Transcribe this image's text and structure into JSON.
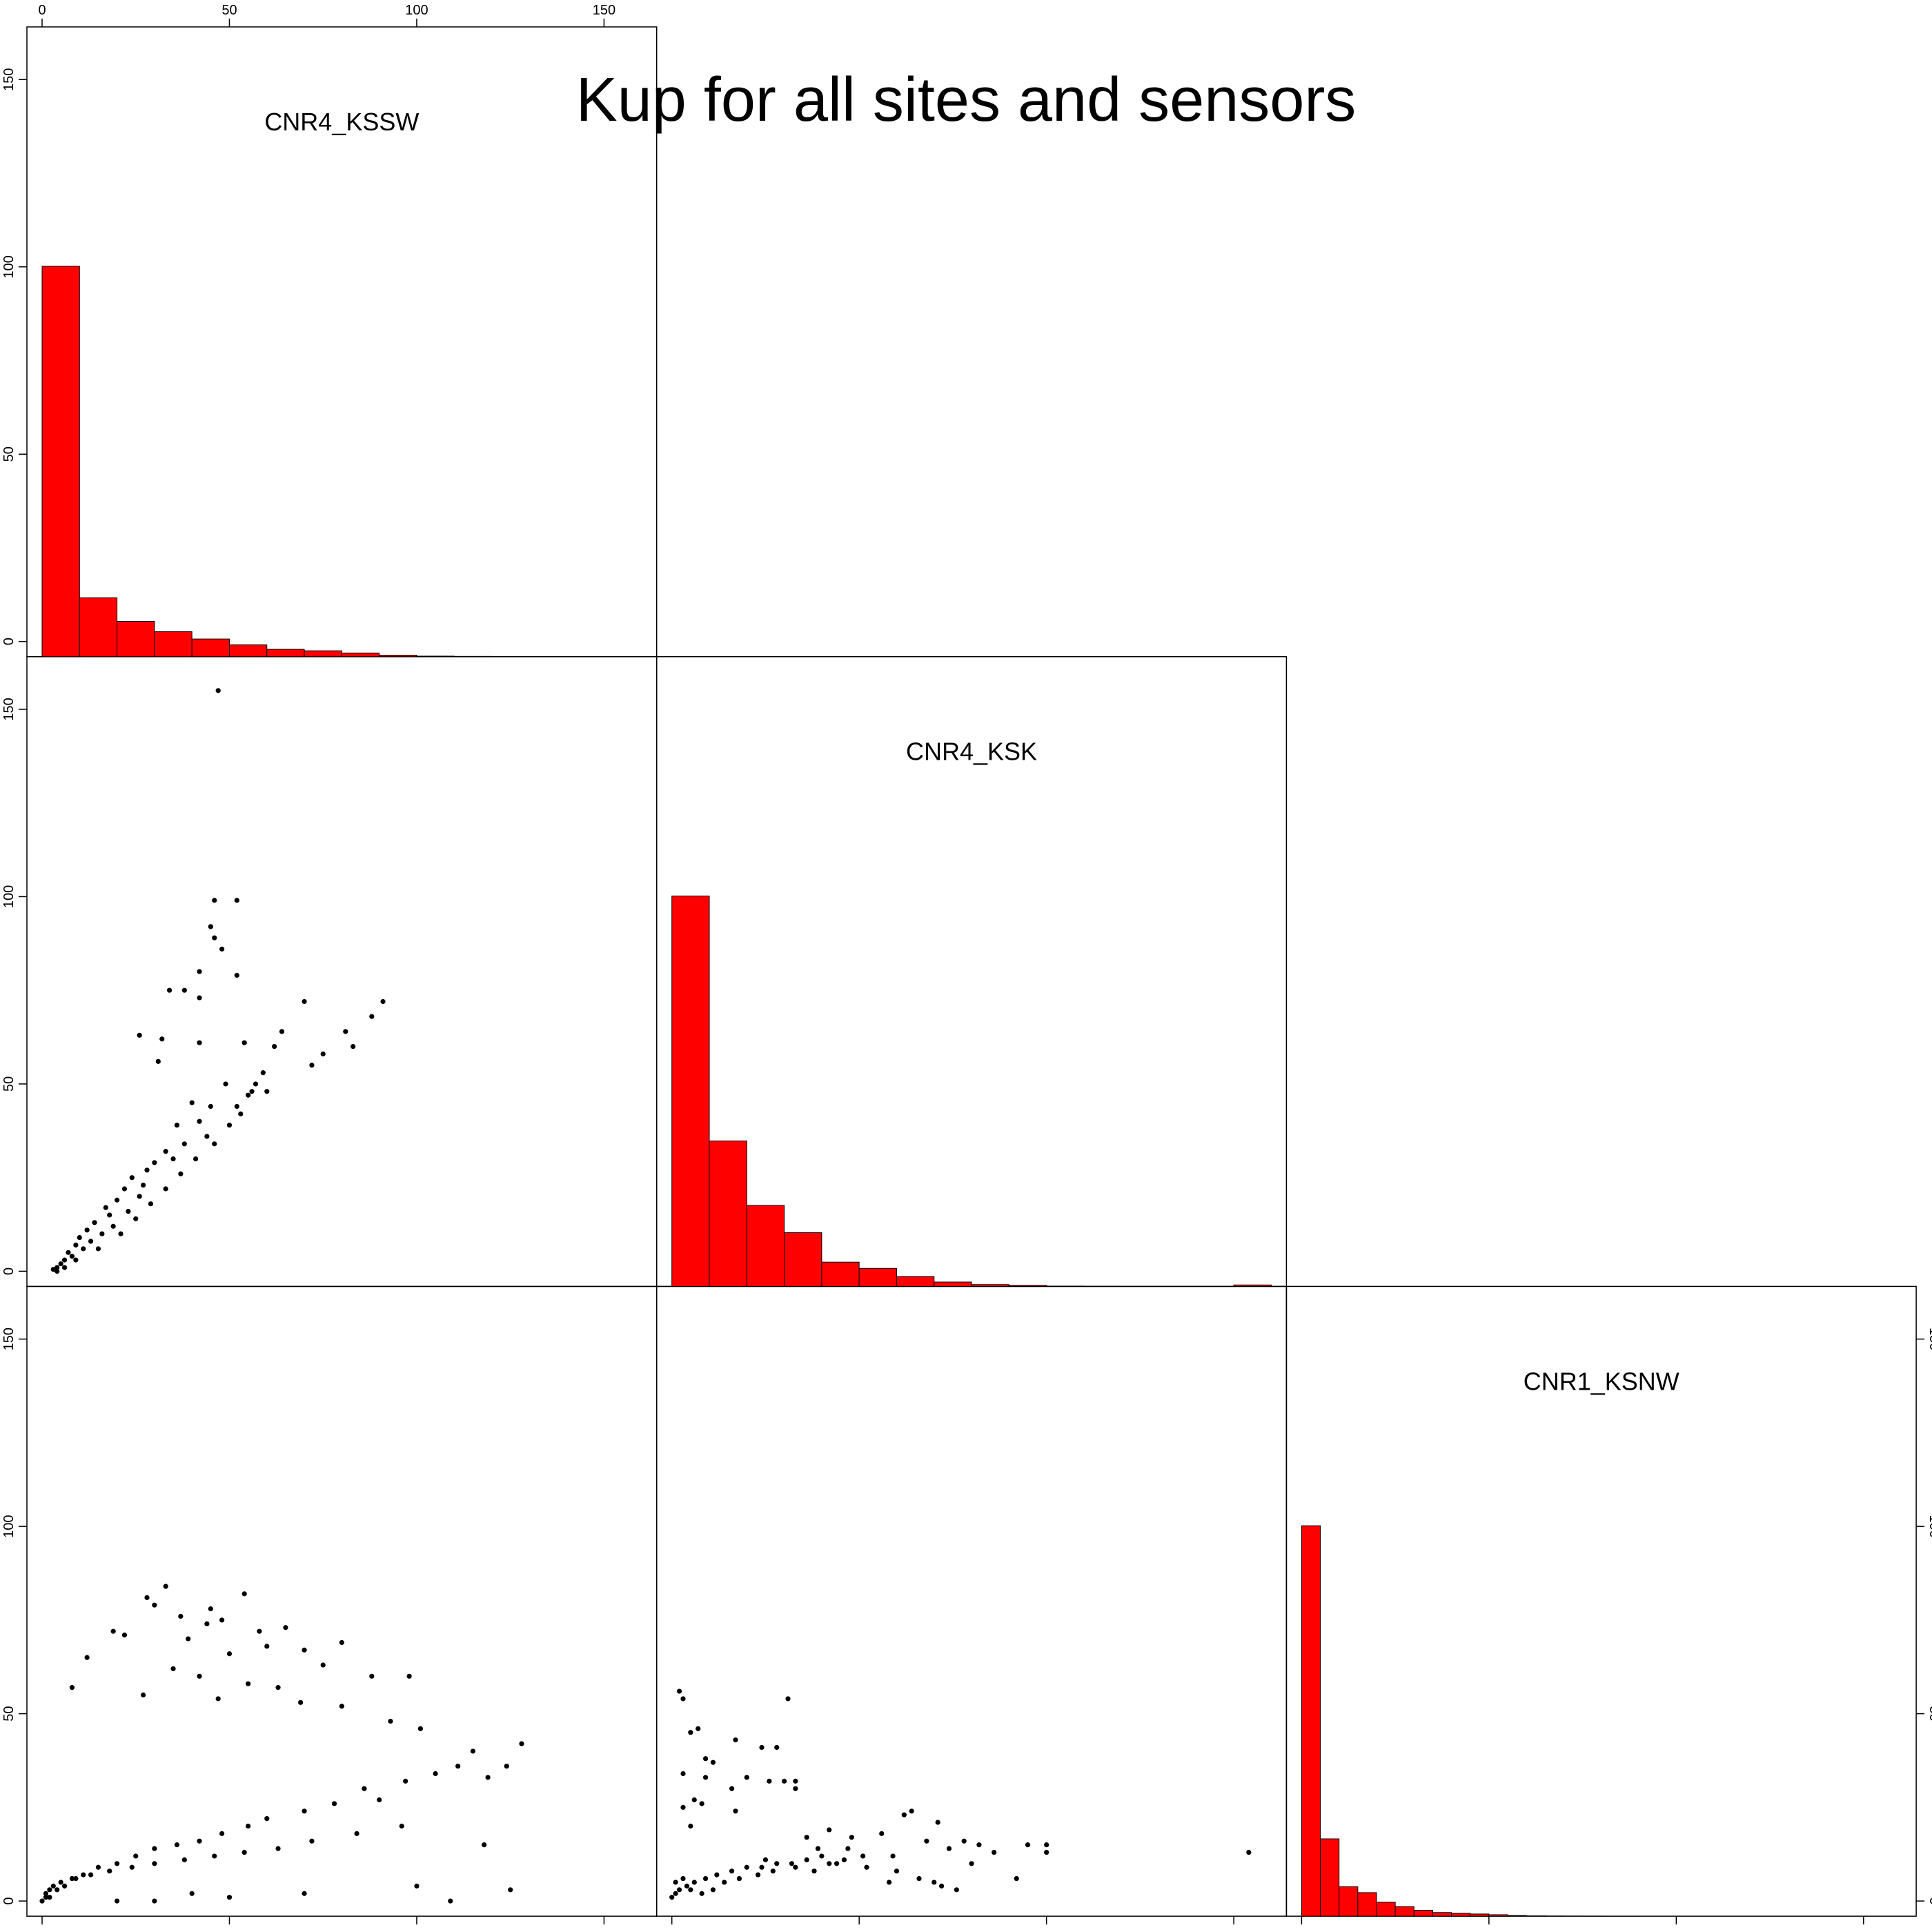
{
  "title": "Kup for all sites and sensors",
  "colors": {
    "bar_fill": "#ff0000",
    "bar_stroke": "#000000",
    "point": "#000000",
    "frame": "#000000"
  },
  "chart_data": {
    "type": "scatter-matrix",
    "variables": [
      "CNR4_KSSW",
      "CNR4_KSK",
      "CNR1_KSNW"
    ],
    "axis_range": [
      0,
      160
    ],
    "ticks": [
      "0",
      "50",
      "100",
      "150"
    ],
    "tick_values": [
      0,
      50,
      100,
      150
    ],
    "diagonal_histograms": [
      {
        "variable": "CNR4_KSSW",
        "bin_width": 10,
        "bin_starts": [
          0,
          10,
          20,
          30,
          40,
          50,
          60,
          70,
          80,
          90,
          100,
          110,
          120,
          130,
          140
        ],
        "relative_heights": [
          106,
          16,
          9.6,
          6.8,
          4.8,
          3.2,
          2.0,
          1.6,
          1.0,
          0.4,
          0.15,
          0.06,
          0.04,
          0.02,
          0.01
        ]
      },
      {
        "variable": "CNR4_KSK",
        "bin_width": 10,
        "bin_starts": [
          0,
          10,
          20,
          30,
          40,
          50,
          60,
          70,
          80,
          90,
          100,
          110,
          120,
          130,
          140,
          150
        ],
        "relative_heights": [
          106,
          39.5,
          22,
          14.6,
          6.6,
          4.9,
          2.7,
          1.2,
          0.5,
          0.3,
          0.1,
          0.05,
          0.04,
          0.03,
          0.02,
          0.4
        ]
      },
      {
        "variable": "CNR1_KSNW",
        "bin_width": 5,
        "bin_starts": [
          0,
          5,
          10,
          15,
          20,
          25,
          30,
          35,
          40,
          45,
          50,
          55,
          60,
          65,
          70,
          75,
          80,
          85
        ],
        "relative_heights": [
          106,
          21,
          8,
          6.4,
          3.8,
          2.6,
          1.6,
          1.0,
          0.8,
          0.6,
          0.4,
          0.2,
          0.1,
          0.06,
          0.04,
          0.03,
          0.02,
          0.01
        ]
      }
    ],
    "scatter_panels": [
      {
        "x": "CNR4_KSSW",
        "y": "CNR4_KSK",
        "points": [
          [
            47,
            155
          ],
          [
            46,
            99
          ],
          [
            52,
            99
          ],
          [
            45,
            92
          ],
          [
            46,
            89
          ],
          [
            48,
            86
          ],
          [
            42,
            80
          ],
          [
            52,
            79
          ],
          [
            34,
            75
          ],
          [
            38,
            75
          ],
          [
            42,
            73
          ],
          [
            70,
            72
          ],
          [
            91,
            72
          ],
          [
            88,
            68
          ],
          [
            64,
            64
          ],
          [
            81,
            64
          ],
          [
            26,
            63
          ],
          [
            32,
            62
          ],
          [
            54,
            61
          ],
          [
            42,
            61
          ],
          [
            83,
            60
          ],
          [
            62,
            60
          ],
          [
            75,
            58
          ],
          [
            72,
            55
          ],
          [
            31,
            56
          ],
          [
            59,
            53
          ],
          [
            57,
            50
          ],
          [
            60,
            48
          ],
          [
            49,
            50
          ],
          [
            55,
            47
          ],
          [
            40,
            45
          ],
          [
            45,
            44
          ],
          [
            53,
            42
          ],
          [
            42,
            40
          ],
          [
            36,
            39
          ],
          [
            44,
            36
          ],
          [
            38,
            34
          ],
          [
            33,
            32
          ],
          [
            35,
            30
          ],
          [
            30,
            29
          ],
          [
            28,
            27
          ],
          [
            24,
            25
          ],
          [
            27,
            23
          ],
          [
            22,
            22
          ],
          [
            26,
            20
          ],
          [
            20,
            19
          ],
          [
            17,
            17
          ],
          [
            23,
            16
          ],
          [
            18,
            15
          ],
          [
            14,
            13
          ],
          [
            19,
            12
          ],
          [
            12,
            11
          ],
          [
            16,
            10
          ],
          [
            10,
            9
          ],
          [
            13,
            8
          ],
          [
            9,
            7
          ],
          [
            11,
            6
          ],
          [
            7,
            5
          ],
          [
            8,
            4
          ],
          [
            6,
            3
          ],
          [
            5,
            2
          ],
          [
            4,
            1
          ],
          [
            3,
            0.5
          ],
          [
            4,
            0
          ],
          [
            6,
            1
          ],
          [
            9,
            3
          ],
          [
            15,
            6
          ],
          [
            21,
            10
          ],
          [
            25,
            14
          ],
          [
            29,
            18
          ],
          [
            33,
            22
          ],
          [
            37,
            26
          ],
          [
            41,
            30
          ],
          [
            46,
            34
          ],
          [
            50,
            39
          ],
          [
            52,
            44
          ],
          [
            56,
            48
          ]
        ]
      },
      {
        "x": "CNR4_KSSW",
        "y": "CNR1_KSNW",
        "points": [
          [
            33,
            84
          ],
          [
            54,
            82
          ],
          [
            28,
            81
          ],
          [
            30,
            79
          ],
          [
            45,
            78
          ],
          [
            37,
            76
          ],
          [
            48,
            75
          ],
          [
            44,
            74
          ],
          [
            65,
            73
          ],
          [
            58,
            72
          ],
          [
            19,
            72
          ],
          [
            80,
            69
          ],
          [
            22,
            71
          ],
          [
            39,
            70
          ],
          [
            60,
            68
          ],
          [
            70,
            67
          ],
          [
            50,
            66
          ],
          [
            12,
            65
          ],
          [
            75,
            63
          ],
          [
            88,
            60
          ],
          [
            98,
            60
          ],
          [
            35,
            62
          ],
          [
            42,
            60
          ],
          [
            55,
            58
          ],
          [
            63,
            57
          ],
          [
            8,
            57
          ],
          [
            27,
            55
          ],
          [
            47,
            54
          ],
          [
            69,
            53
          ],
          [
            80,
            52
          ],
          [
            93,
            48
          ],
          [
            101,
            46
          ],
          [
            128,
            42
          ],
          [
            115,
            40
          ],
          [
            124,
            36
          ],
          [
            111,
            36
          ],
          [
            119,
            33
          ],
          [
            105,
            34
          ],
          [
            97,
            32
          ],
          [
            86,
            30
          ],
          [
            90,
            27
          ],
          [
            78,
            26
          ],
          [
            70,
            24
          ],
          [
            60,
            22
          ],
          [
            55,
            20
          ],
          [
            48,
            18
          ],
          [
            42,
            16
          ],
          [
            36,
            15
          ],
          [
            30,
            14
          ],
          [
            25,
            12
          ],
          [
            20,
            10
          ],
          [
            15,
            9
          ],
          [
            11,
            7
          ],
          [
            8,
            6
          ],
          [
            5,
            5
          ],
          [
            3,
            4
          ],
          [
            2,
            3
          ],
          [
            1,
            2
          ],
          [
            1,
            1
          ],
          [
            0,
            0
          ],
          [
            2,
            1
          ],
          [
            4,
            3
          ],
          [
            6,
            4
          ],
          [
            9,
            6
          ],
          [
            13,
            7
          ],
          [
            18,
            8
          ],
          [
            24,
            9
          ],
          [
            30,
            10
          ],
          [
            38,
            11
          ],
          [
            46,
            12
          ],
          [
            54,
            13
          ],
          [
            63,
            14
          ],
          [
            72,
            16
          ],
          [
            84,
            18
          ],
          [
            96,
            20
          ],
          [
            118,
            15
          ],
          [
            109,
            0
          ],
          [
            125,
            3
          ],
          [
            100,
            4
          ],
          [
            70,
            2
          ],
          [
            50,
            1
          ],
          [
            30,
            0
          ],
          [
            20,
            0
          ],
          [
            40,
            2
          ]
        ]
      },
      {
        "x": "CNR4_KSK",
        "y": "CNR1_KSNW",
        "points": [
          [
            2,
            56
          ],
          [
            3,
            54
          ],
          [
            31,
            54
          ],
          [
            7,
            46
          ],
          [
            5,
            45
          ],
          [
            17,
            43
          ],
          [
            24,
            41
          ],
          [
            28,
            41
          ],
          [
            9,
            38
          ],
          [
            11,
            37
          ],
          [
            3,
            34
          ],
          [
            9,
            33
          ],
          [
            20,
            33
          ],
          [
            26,
            32
          ],
          [
            30,
            32
          ],
          [
            33,
            32
          ],
          [
            16,
            30
          ],
          [
            33,
            30
          ],
          [
            6,
            27
          ],
          [
            8,
            26
          ],
          [
            3,
            25
          ],
          [
            17,
            24
          ],
          [
            64,
            24
          ],
          [
            62,
            23
          ],
          [
            71,
            21
          ],
          [
            5,
            20
          ],
          [
            42,
            19
          ],
          [
            56,
            18
          ],
          [
            36,
            17
          ],
          [
            48,
            17
          ],
          [
            68,
            16
          ],
          [
            78,
            16
          ],
          [
            82,
            15
          ],
          [
            95,
            15
          ],
          [
            100,
            15
          ],
          [
            154,
            13
          ],
          [
            100,
            13
          ],
          [
            86,
            13
          ],
          [
            74,
            14
          ],
          [
            59,
            12
          ],
          [
            51,
            12
          ],
          [
            46,
            11
          ],
          [
            40,
            12
          ],
          [
            36,
            11
          ],
          [
            32,
            10
          ],
          [
            28,
            10
          ],
          [
            24,
            9
          ],
          [
            20,
            9
          ],
          [
            16,
            8
          ],
          [
            12,
            7
          ],
          [
            9,
            6
          ],
          [
            6,
            5
          ],
          [
            4,
            4
          ],
          [
            2,
            3
          ],
          [
            1,
            2
          ],
          [
            0,
            1
          ],
          [
            1,
            5
          ],
          [
            3,
            6
          ],
          [
            5,
            3
          ],
          [
            8,
            2
          ],
          [
            11,
            3
          ],
          [
            14,
            5
          ],
          [
            18,
            6
          ],
          [
            23,
            7
          ],
          [
            27,
            8
          ],
          [
            33,
            9
          ],
          [
            38,
            8
          ],
          [
            44,
            10
          ],
          [
            52,
            9
          ],
          [
            60,
            8
          ],
          [
            66,
            6
          ],
          [
            72,
            4
          ],
          [
            76,
            3
          ],
          [
            70,
            5
          ],
          [
            58,
            5
          ],
          [
            92,
            6
          ],
          [
            80,
            10
          ],
          [
            47,
            14
          ],
          [
            39,
            14
          ],
          [
            42,
            10
          ],
          [
            25,
            11
          ]
        ]
      }
    ]
  }
}
